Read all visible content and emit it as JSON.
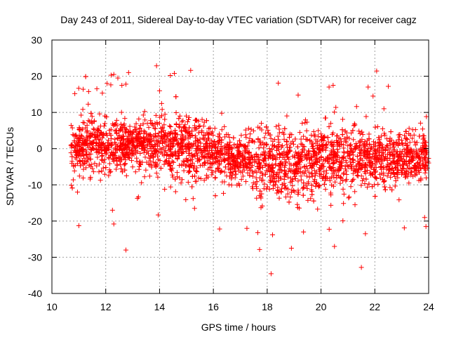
{
  "chart_data": {
    "type": "scatter",
    "title": "Day 243 of 2011, Sidereal Day-to-day VTEC variation (SDTVAR) for receiver cagz",
    "xlabel": "GPS time / hours",
    "ylabel": "SDTVAR / TECUs",
    "xlim": [
      10,
      24
    ],
    "ylim": [
      -40,
      30
    ],
    "xticks": [
      10,
      12,
      14,
      16,
      18,
      20,
      22,
      24
    ],
    "yticks": [
      -40,
      -30,
      -20,
      -10,
      0,
      10,
      20,
      30
    ],
    "grid": true,
    "legend": "none",
    "marker": "+",
    "marker_color": "#ff0000",
    "series": [
      {
        "name": "SDTVAR",
        "x_range": [
          10.7,
          24.0
        ],
        "band_profile": [
          {
            "x": 10.7,
            "mean": 0.5,
            "spread": 3.5
          },
          {
            "x": 12.0,
            "mean": 1.0,
            "spread": 4.0
          },
          {
            "x": 13.0,
            "mean": 1.5,
            "spread": 2.5
          },
          {
            "x": 14.0,
            "mean": 1.0,
            "spread": 4.0
          },
          {
            "x": 15.0,
            "mean": 0.5,
            "spread": 5.0
          },
          {
            "x": 16.0,
            "mean": -1.5,
            "spread": 3.5
          },
          {
            "x": 17.0,
            "mean": -3.0,
            "spread": 3.0
          },
          {
            "x": 18.0,
            "mean": -4.0,
            "spread": 5.0
          },
          {
            "x": 19.0,
            "mean": -4.0,
            "spread": 4.5
          },
          {
            "x": 20.0,
            "mean": -3.0,
            "spread": 4.5
          },
          {
            "x": 21.0,
            "mean": -2.5,
            "spread": 4.0
          },
          {
            "x": 22.0,
            "mean": -2.5,
            "spread": 4.0
          },
          {
            "x": 23.0,
            "mean": -2.5,
            "spread": 3.5
          },
          {
            "x": 24.0,
            "mean": -2.5,
            "spread": 3.5
          }
        ],
        "outliers": [
          {
            "x": 10.85,
            "y": 15.2
          },
          {
            "x": 10.95,
            "y": -12.0
          },
          {
            "x": 11.0,
            "y": -21.3
          },
          {
            "x": 12.05,
            "y": 18.0
          },
          {
            "x": 12.2,
            "y": 20.3
          },
          {
            "x": 12.3,
            "y": 20.5
          },
          {
            "x": 12.45,
            "y": 19.5
          },
          {
            "x": 12.6,
            "y": 17.5
          },
          {
            "x": 12.75,
            "y": 17.8
          },
          {
            "x": 12.85,
            "y": 21.0
          },
          {
            "x": 12.25,
            "y": -17.0
          },
          {
            "x": 12.3,
            "y": -20.8
          },
          {
            "x": 12.75,
            "y": -28.0
          },
          {
            "x": 14.4,
            "y": 20.2
          },
          {
            "x": 14.55,
            "y": 20.8
          },
          {
            "x": 14.0,
            "y": 16.0
          },
          {
            "x": 13.95,
            "y": -18.3
          },
          {
            "x": 15.3,
            "y": -16.5
          },
          {
            "x": 17.65,
            "y": -23.2
          },
          {
            "x": 18.2,
            "y": -23.8
          },
          {
            "x": 18.9,
            "y": -27.5
          },
          {
            "x": 19.15,
            "y": 14.8
          },
          {
            "x": 19.35,
            "y": -23.0
          },
          {
            "x": 20.3,
            "y": 17.0
          },
          {
            "x": 20.45,
            "y": 17.5
          },
          {
            "x": 20.5,
            "y": -27.0
          },
          {
            "x": 21.5,
            "y": -32.8
          },
          {
            "x": 21.65,
            "y": -23.5
          },
          {
            "x": 21.75,
            "y": 17.0
          },
          {
            "x": 22.5,
            "y": 17.2
          },
          {
            "x": 23.85,
            "y": -19.0
          },
          {
            "x": 23.9,
            "y": -21.5
          }
        ]
      }
    ]
  }
}
